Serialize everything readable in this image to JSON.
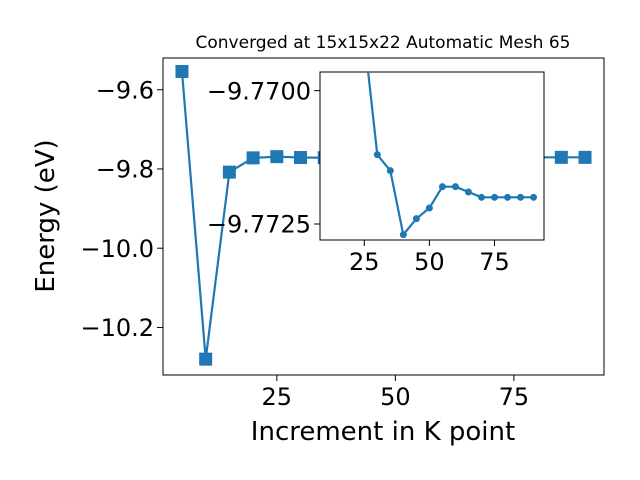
{
  "chart_data": [
    {
      "type": "line",
      "title": "Converged at 15x15x22 Automatic Mesh 65",
      "xlabel": "Increment in K point",
      "ylabel": "Energy (eV)",
      "xlim": [
        1,
        94
      ],
      "ylim": [
        -10.32,
        -9.52
      ],
      "xticks": [
        25,
        50,
        75
      ],
      "yticks": [
        -9.6,
        -9.8,
        -10.0,
        -10.2
      ],
      "xtick_labels": [
        "25",
        "50",
        "75"
      ],
      "ytick_labels": [
        "−9.6",
        "−9.8",
        "−10.0",
        "−10.2"
      ],
      "marker": "square",
      "color": "#1f77b4",
      "grid": false,
      "series": [
        {
          "x": [
            5,
            10,
            15,
            20,
            25,
            30,
            35,
            40,
            45,
            50,
            55,
            60,
            65,
            70,
            75,
            80,
            85,
            90
          ],
          "y": [
            -9.554,
            -10.28,
            -9.808,
            -9.772,
            -9.769,
            -9.7712,
            -9.7715,
            -9.7727,
            -9.7716,
            -9.7711,
            -9.7706,
            -9.7705,
            -9.7706,
            -9.7707,
            -9.7707,
            -9.7707,
            -9.7707,
            -9.7707
          ]
        }
      ]
    },
    {
      "type": "line",
      "title": "",
      "xlabel": "",
      "ylabel": "",
      "xlim": [
        8,
        94
      ],
      "ylim": [
        -9.7728,
        -9.76965
      ],
      "xticks": [
        25,
        50,
        75
      ],
      "yticks": [
        -9.7725,
        -9.77
      ],
      "xtick_labels": [
        "25",
        "50",
        "75"
      ],
      "ytick_labels": [
        "−9.7725",
        "−9.7700"
      ],
      "marker": "circle",
      "color": "#1f77b4",
      "grid": false,
      "series": [
        {
          "x": [
            25,
            30,
            35,
            40,
            45,
            50,
            55,
            60,
            65,
            70,
            75,
            80,
            85,
            90
          ],
          "y": [
            -9.769,
            -9.7712,
            -9.7715,
            -9.7727,
            -9.7724,
            -9.7722,
            -9.7718,
            -9.7718,
            -9.7719,
            -9.772,
            -9.772,
            -9.772,
            -9.772,
            -9.772
          ]
        }
      ]
    }
  ]
}
